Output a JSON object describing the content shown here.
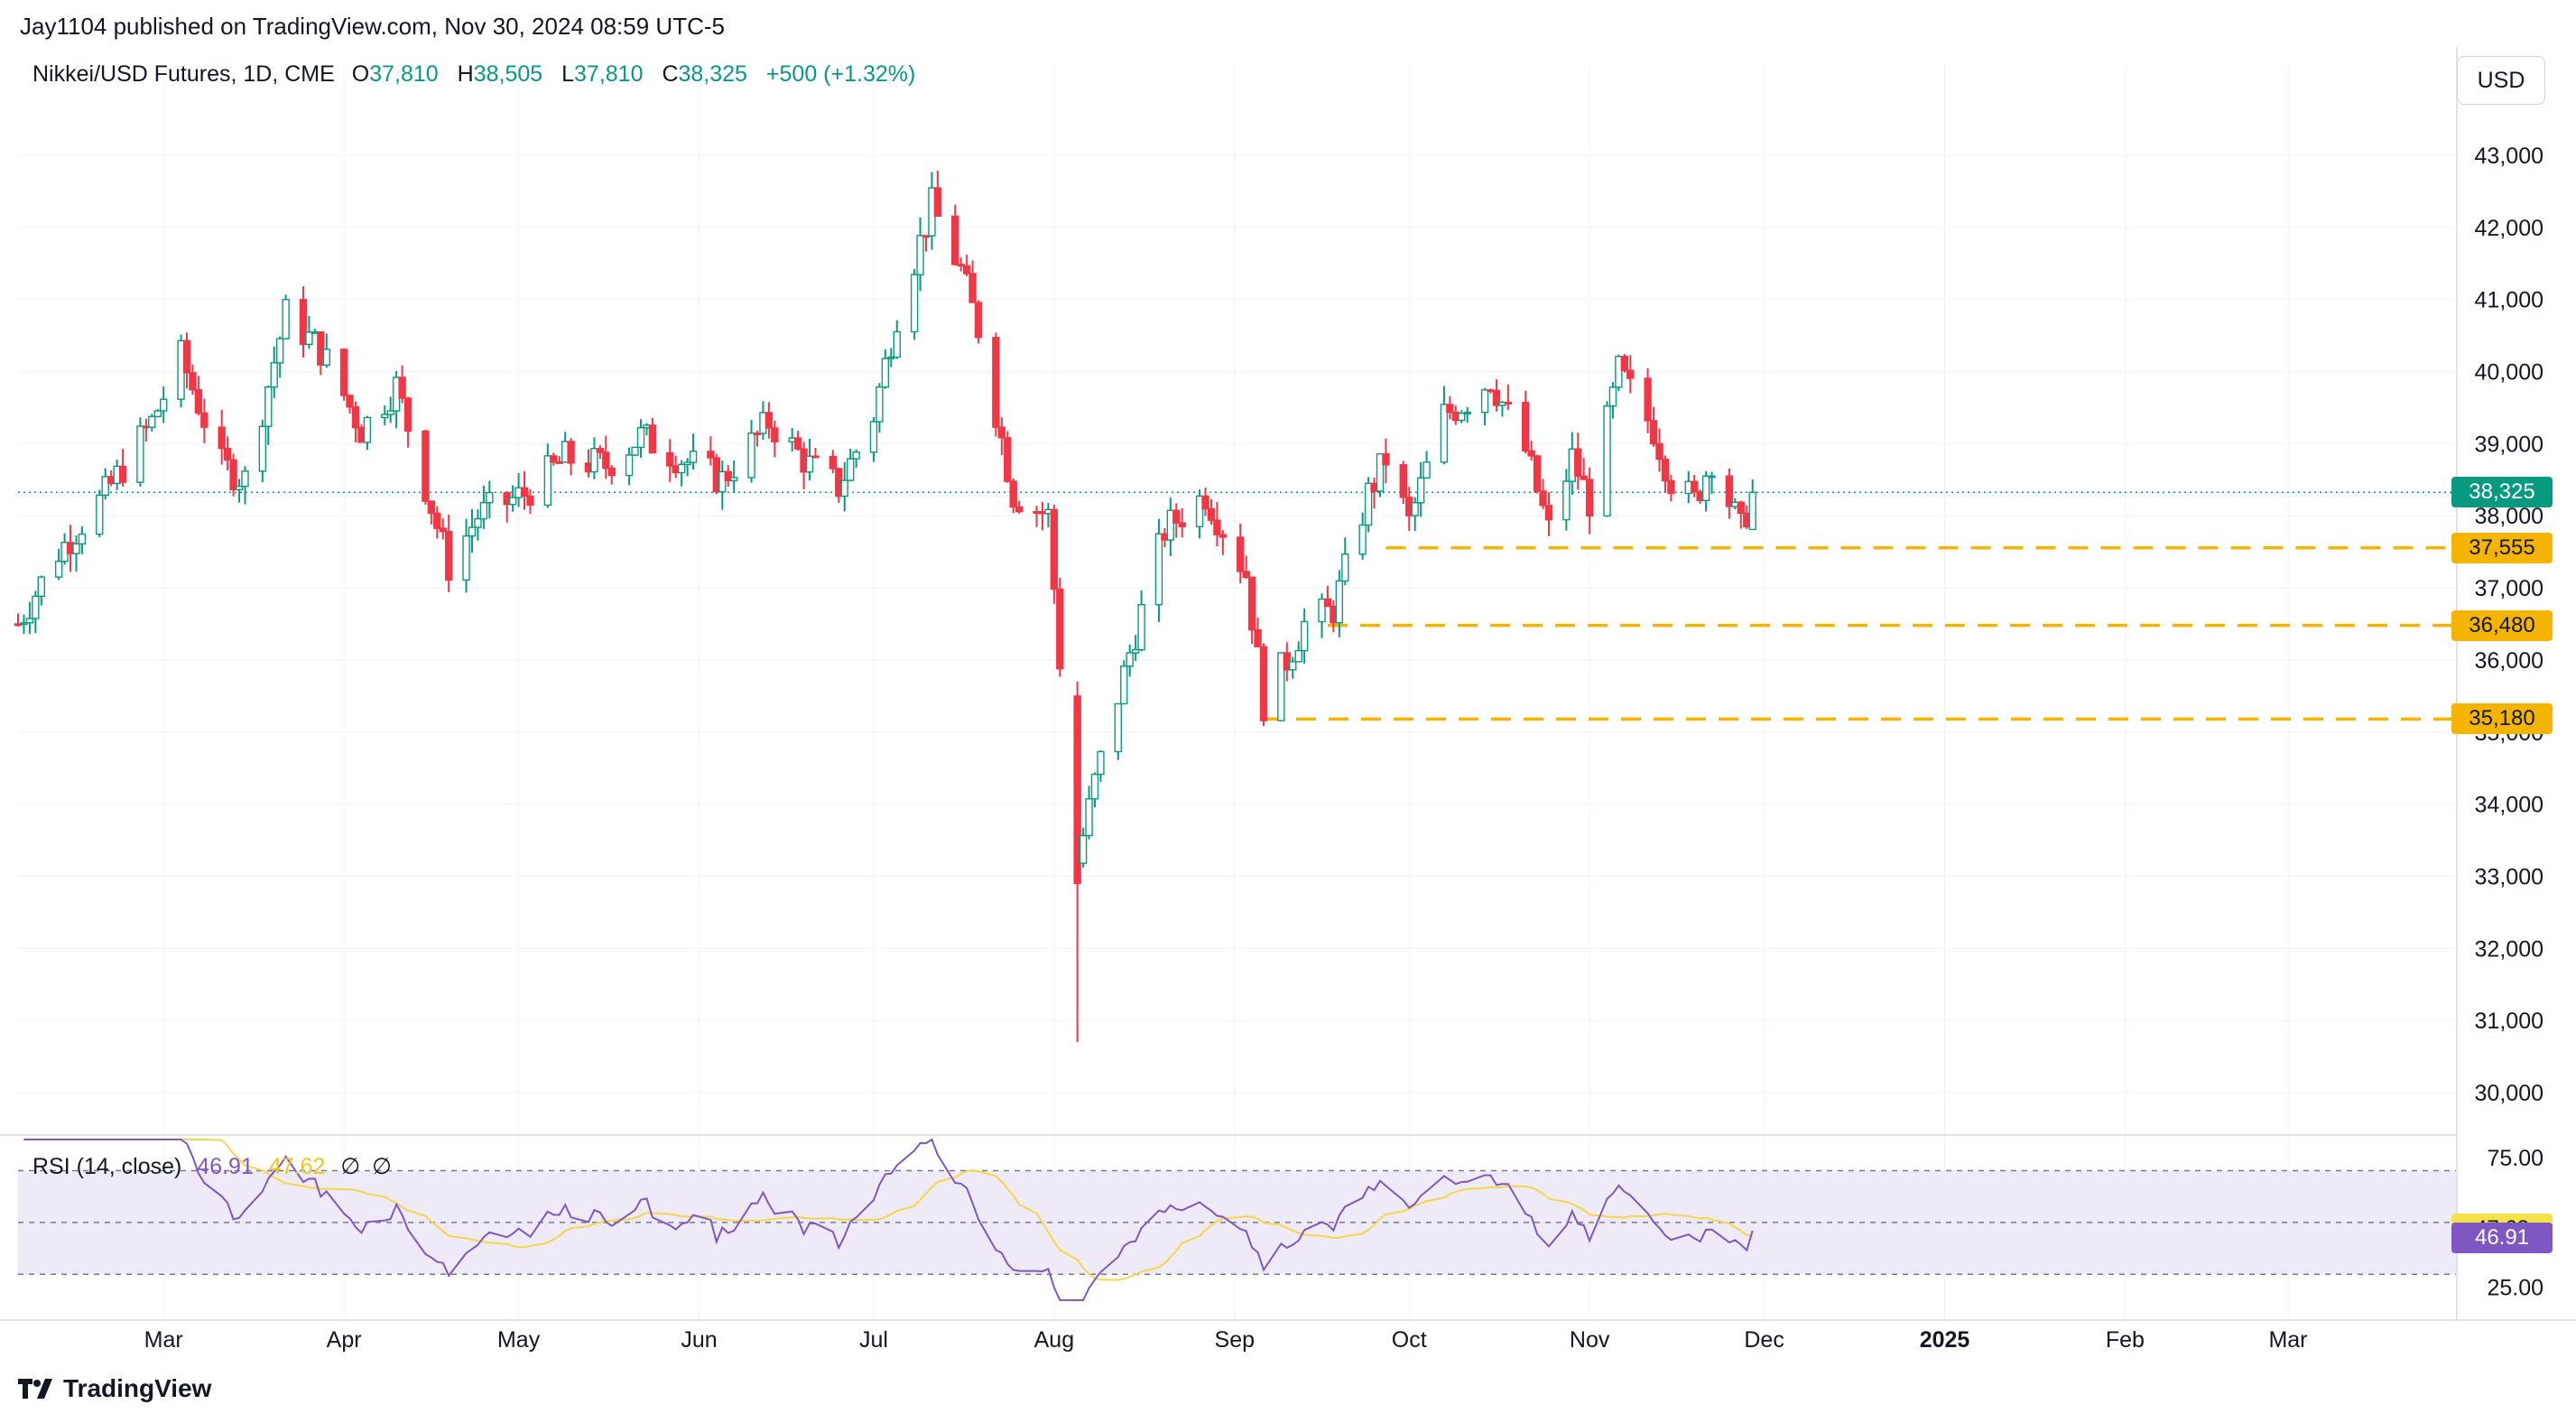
{
  "publisher_line": "Jay1104 published on TradingView.com, Nov 30, 2024 08:59 UTC-5",
  "legend": {
    "symbol": "Nikkei/USD Futures, 1D, CME",
    "o_label": "O",
    "o_value": "37,810",
    "h_label": "H",
    "h_value": "38,505",
    "l_label": "L",
    "l_value": "37,810",
    "c_label": "C",
    "c_value": "38,325",
    "change": "+500 (+1.32%)"
  },
  "currency_button": "USD",
  "rsi_legend": {
    "title": "RSI (14, close)",
    "rsi_value": "46.91",
    "ma_value": "47.62",
    "extra1": "∅",
    "extra2": "∅"
  },
  "brand": "TradingView",
  "colors": {
    "up": "#089981",
    "down": "#f23645",
    "level": "#f5b400",
    "rsi_line": "#7e57c2",
    "rsi_ma": "#f7d64a",
    "rsi_band": "#efeaf8",
    "last_price": "#089981"
  },
  "chart_data": [
    {
      "type": "candlestick",
      "title": "Nikkei/USD Futures, 1D, CME",
      "ylim": [
        29500,
        43500
      ],
      "y_ticks": [
        "43,000",
        "42,000",
        "41,000",
        "40,000",
        "39,000",
        "38,000",
        "37,000",
        "36,000",
        "35,000",
        "34,000",
        "33,000",
        "32,000",
        "31,000",
        "30,000"
      ],
      "y_tick_values": [
        43000,
        42000,
        41000,
        40000,
        39000,
        38000,
        37000,
        36000,
        35000,
        34000,
        33000,
        32000,
        31000,
        30000
      ],
      "x_ticks": [
        "Mar",
        "Apr",
        "May",
        "Jun",
        "Jul",
        "Aug",
        "Sep",
        "Oct",
        "Nov",
        "Dec",
        "2025",
        "Feb",
        "Mar"
      ],
      "x_tick_dates": [
        "2024-03-01",
        "2024-04-01",
        "2024-05-01",
        "2024-06-01",
        "2024-07-01",
        "2024-08-01",
        "2024-09-01",
        "2024-10-01",
        "2024-11-01",
        "2024-12-01",
        "2025-01-01",
        "2025-02-01",
        "2025-03-01"
      ],
      "x_range": [
        "2024-02-05",
        "2025-03-30"
      ],
      "last_price": 38325,
      "last_price_label": "38,325",
      "levels": [
        {
          "value": 37555,
          "label": "37,555",
          "from": "2024-09-27"
        },
        {
          "value": 36480,
          "label": "36,480",
          "from": "2024-09-17"
        },
        {
          "value": 35180,
          "label": "35,180",
          "from": "2024-09-06"
        }
      ],
      "anchors": [
        [
          "2024-02-05",
          36500
        ],
        [
          "2024-02-12",
          37500
        ],
        [
          "2024-02-20",
          38300
        ],
        [
          "2024-02-28",
          39300
        ],
        [
          "2024-03-04",
          40200
        ],
        [
          "2024-03-11",
          38700
        ],
        [
          "2024-03-15",
          38500
        ],
        [
          "2024-03-22",
          40800
        ],
        [
          "2024-03-28",
          40300
        ],
        [
          "2024-04-04",
          39200
        ],
        [
          "2024-04-10",
          39800
        ],
        [
          "2024-04-19",
          37300
        ],
        [
          "2024-04-24",
          38000
        ],
        [
          "2024-05-02",
          38300
        ],
        [
          "2024-05-09",
          38800
        ],
        [
          "2024-05-16",
          38700
        ],
        [
          "2024-05-22",
          39100
        ],
        [
          "2024-05-31",
          38700
        ],
        [
          "2024-06-05",
          38500
        ],
        [
          "2024-06-13",
          39300
        ],
        [
          "2024-06-20",
          38700
        ],
        [
          "2024-06-25",
          38400
        ],
        [
          "2024-07-01",
          39400
        ],
        [
          "2024-07-05",
          40800
        ],
        [
          "2024-07-11",
          42300
        ],
        [
          "2024-07-16",
          41400
        ],
        [
          "2024-07-19",
          40600
        ],
        [
          "2024-07-25",
          38300
        ],
        [
          "2024-07-31",
          38000
        ],
        [
          "2024-08-02",
          36000
        ],
        [
          "2024-08-05",
          33200
        ],
        [
          "2024-08-08",
          34300
        ],
        [
          "2024-08-14",
          36100
        ],
        [
          "2024-08-20",
          37800
        ],
        [
          "2024-08-27",
          38300
        ],
        [
          "2024-09-03",
          37200
        ],
        [
          "2024-09-06",
          35400
        ],
        [
          "2024-09-10",
          36000
        ],
        [
          "2024-09-13",
          36500
        ],
        [
          "2024-09-18",
          36700
        ],
        [
          "2024-09-24",
          38300
        ],
        [
          "2024-09-27",
          38800
        ],
        [
          "2024-10-01",
          37900
        ],
        [
          "2024-10-07",
          39400
        ],
        [
          "2024-10-11",
          39600
        ],
        [
          "2024-10-15",
          39900
        ],
        [
          "2024-10-21",
          38900
        ],
        [
          "2024-10-25",
          37800
        ],
        [
          "2024-10-29",
          38800
        ],
        [
          "2024-11-01",
          38200
        ],
        [
          "2024-11-06",
          40000
        ],
        [
          "2024-11-12",
          39200
        ],
        [
          "2024-11-15",
          38500
        ],
        [
          "2024-11-19",
          38200
        ],
        [
          "2024-11-22",
          38800
        ],
        [
          "2024-11-27",
          37800
        ],
        [
          "2024-11-29",
          38325
        ]
      ]
    },
    {
      "type": "line",
      "title": "RSI (14, close)",
      "ylim": [
        20,
        82
      ],
      "y_ticks": [
        "75.00",
        "25.00"
      ],
      "y_tick_values": [
        75,
        25
      ],
      "band": [
        30,
        70
      ],
      "midline": 50,
      "series": [
        {
          "name": "RSI",
          "last_label": "46.91"
        },
        {
          "name": "RSI MA",
          "last_label": "47.62"
        }
      ]
    }
  ]
}
